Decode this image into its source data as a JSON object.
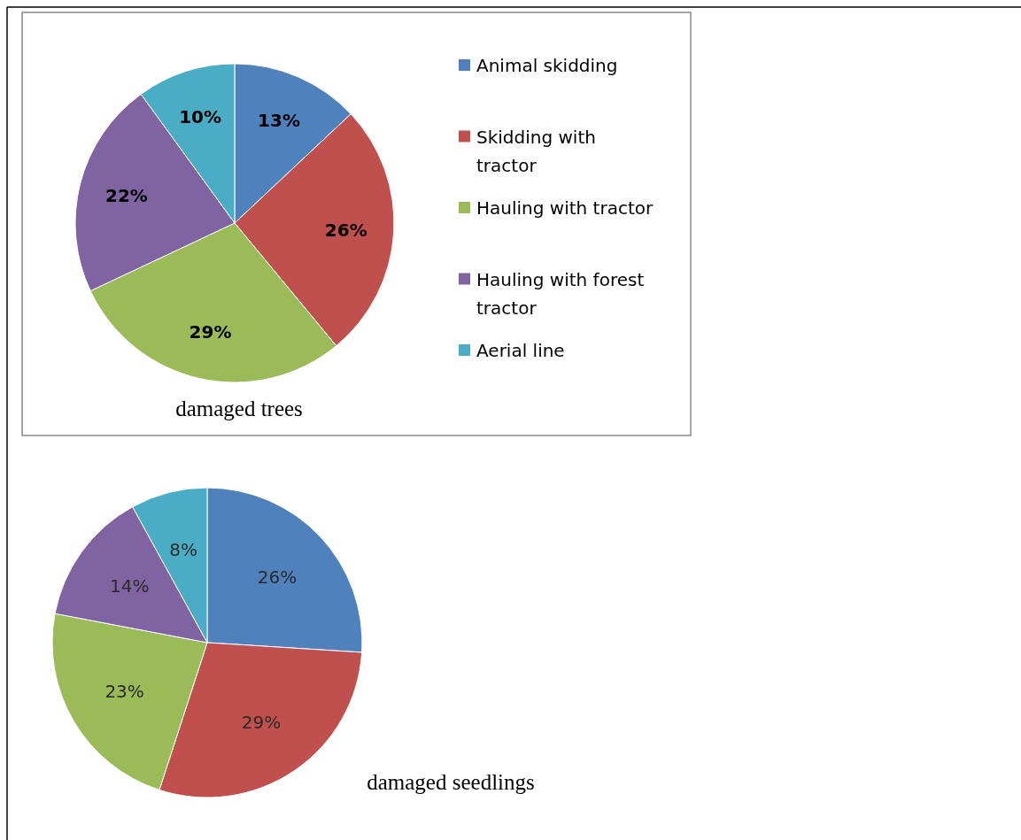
{
  "chart_data": [
    {
      "type": "pie",
      "title": "damaged trees",
      "categories": [
        "Animal skidding",
        "Skidding with tractor",
        "Hauling with tractor",
        "Hauling with forest tractor",
        "Aerial line"
      ],
      "values": [
        13,
        26,
        29,
        22,
        10
      ],
      "value_labels": [
        "13%",
        "26%",
        "29%",
        "22%",
        "10%"
      ],
      "colors": [
        "#4f81bd",
        "#c0504d",
        "#9bbb59",
        "#8064a2",
        "#4bacc6"
      ],
      "legend": "right"
    },
    {
      "type": "pie",
      "title": "damaged seedlings",
      "categories": [
        null,
        null,
        null,
        null,
        null
      ],
      "values": [
        26,
        29,
        23,
        14,
        8
      ],
      "value_labels": [
        "26%",
        "29%",
        "23%",
        "14%",
        "8%"
      ],
      "colors": [
        "#4f81bd",
        "#c0504d",
        "#9bbb59",
        "#8064a2",
        "#4bacc6"
      ]
    }
  ]
}
